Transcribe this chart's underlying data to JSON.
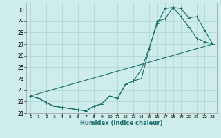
{
  "xlabel": "Humidex (Indice chaleur)",
  "ylabel": "",
  "background_color": "#ceecea",
  "grid_color": "#afd8d4",
  "line_color": "#1a6b6b",
  "xlim": [
    -0.5,
    23.5
  ],
  "ylim": [
    21.0,
    30.6
  ],
  "xticks": [
    0,
    1,
    2,
    3,
    4,
    5,
    6,
    7,
    8,
    9,
    10,
    11,
    12,
    13,
    14,
    15,
    16,
    17,
    18,
    19,
    20,
    21,
    22,
    23
  ],
  "yticks": [
    21,
    22,
    23,
    24,
    25,
    26,
    27,
    28,
    29,
    30
  ],
  "line1_x": [
    0,
    1,
    2,
    3,
    4,
    5,
    6,
    7,
    8,
    9,
    10,
    11,
    12,
    13,
    14,
    15,
    16,
    17,
    18,
    19,
    20,
    21,
    22,
    23
  ],
  "line1_y": [
    22.5,
    22.3,
    21.9,
    21.6,
    21.5,
    21.4,
    21.3,
    21.2,
    21.6,
    21.8,
    22.5,
    22.3,
    23.5,
    23.8,
    24.0,
    26.6,
    29.0,
    29.2,
    30.2,
    30.1,
    29.3,
    29.4,
    28.2,
    27.0
  ],
  "line2_x": [
    0,
    1,
    2,
    3,
    4,
    5,
    6,
    7,
    8,
    9,
    10,
    11,
    12,
    13,
    14,
    15,
    16,
    17,
    18,
    19,
    20,
    21,
    22,
    23
  ],
  "line2_y": [
    22.5,
    22.3,
    21.9,
    21.6,
    21.5,
    21.4,
    21.3,
    21.2,
    21.6,
    21.8,
    22.5,
    22.3,
    23.5,
    23.8,
    24.8,
    26.7,
    28.8,
    30.1,
    30.2,
    29.4,
    28.5,
    27.5,
    27.2,
    27.0
  ],
  "line3_x": [
    0,
    23
  ],
  "line3_y": [
    22.5,
    27.0
  ]
}
